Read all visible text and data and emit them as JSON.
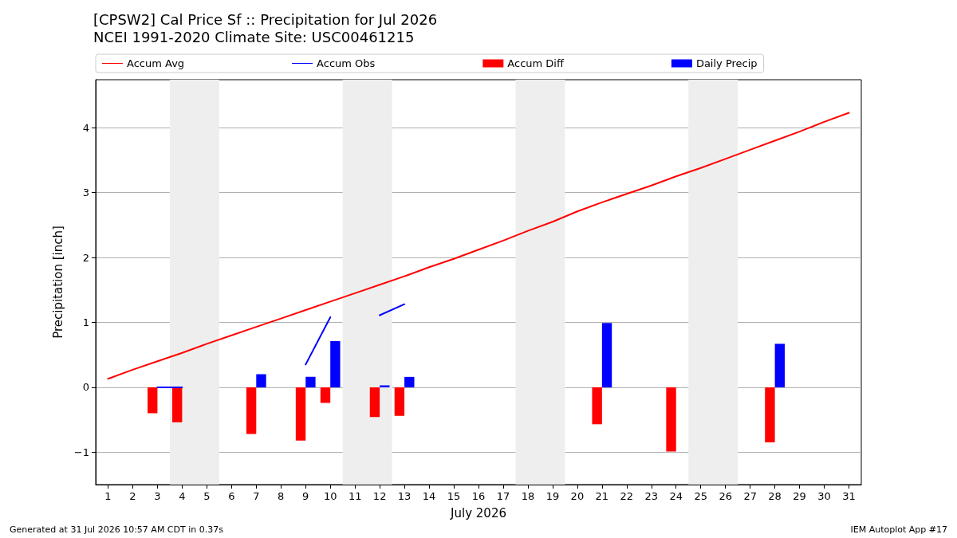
{
  "chart_data": {
    "type": "bar",
    "title": "[CPSW2] Cal Price Sf :: Precipitation for Jul 2026",
    "subtitle": "NCEI 1991-2020 Climate Site: USC00461215",
    "xlabel": "July 2026",
    "ylabel": "Precipitation [inch]",
    "series": [
      {
        "name": "Accum Avg",
        "type": "line",
        "color": "#ff0000",
        "x": [
          1,
          2,
          3,
          4,
          5,
          6,
          7,
          8,
          9,
          10,
          11,
          12,
          13,
          14,
          15,
          16,
          17,
          18,
          19,
          20,
          21,
          22,
          23,
          24,
          25,
          26,
          27,
          28,
          29,
          30,
          31
        ],
        "values": [
          0.13,
          0.27,
          0.4,
          0.53,
          0.67,
          0.8,
          0.93,
          1.06,
          1.19,
          1.32,
          1.45,
          1.58,
          1.71,
          1.85,
          1.98,
          2.12,
          2.26,
          2.41,
          2.55,
          2.71,
          2.85,
          2.98,
          3.11,
          3.25,
          3.38,
          3.52,
          3.66,
          3.8,
          3.94,
          4.09,
          4.23
        ]
      },
      {
        "name": "Accum Obs",
        "type": "line",
        "color": "#0000ff",
        "x": [
          3,
          4,
          5,
          6,
          7,
          8,
          9,
          10,
          11,
          12,
          13
        ],
        "values": [
          0,
          0,
          null,
          null,
          null,
          null,
          0.35,
          1.08,
          null,
          1.11,
          1.28
        ]
      },
      {
        "name": "Accum Diff",
        "color": "#ff0000",
        "x": [
          3,
          4,
          7,
          9,
          10,
          12,
          13,
          21,
          24,
          28
        ],
        "values": [
          -0.4,
          -0.54,
          -0.72,
          -0.82,
          -0.24,
          -0.46,
          -0.44,
          -0.57,
          -0.99,
          -0.85
        ]
      },
      {
        "name": "Daily Precip",
        "color": "#0000ff",
        "x": [
          7,
          9,
          10,
          12,
          13,
          21,
          28
        ],
        "values": [
          0.2,
          0.16,
          0.71,
          0.03,
          0.16,
          0.99,
          0.67
        ]
      }
    ],
    "bands": [
      {
        "axis": "x",
        "from": 3.5,
        "to": 5.5,
        "color": "#eeeeee"
      },
      {
        "axis": "x",
        "from": 10.5,
        "to": 12.5,
        "color": "#eeeeee"
      },
      {
        "axis": "x",
        "from": 17.5,
        "to": 19.5,
        "color": "#eeeeee"
      },
      {
        "axis": "x",
        "from": 24.5,
        "to": 26.5,
        "color": "#eeeeee"
      }
    ],
    "xlim": [
      0.5,
      31.5
    ],
    "xticks": [
      1,
      2,
      3,
      4,
      5,
      6,
      7,
      8,
      9,
      10,
      11,
      12,
      13,
      14,
      15,
      16,
      17,
      18,
      19,
      20,
      21,
      22,
      23,
      24,
      25,
      26,
      27,
      28,
      29,
      30,
      31
    ],
    "ylim": [
      -1.5,
      4.74
    ],
    "yticks": [
      {
        "value": -1,
        "label": "−1"
      },
      0,
      1,
      2,
      3,
      4
    ],
    "grid": "y",
    "legend": "top",
    "marker": "none",
    "line_style": "solid",
    "annotations": [
      "Generated at 31 Jul 2026 10:57 AM CDT in 0.37s",
      "IEM Autoplot App #17"
    ]
  }
}
